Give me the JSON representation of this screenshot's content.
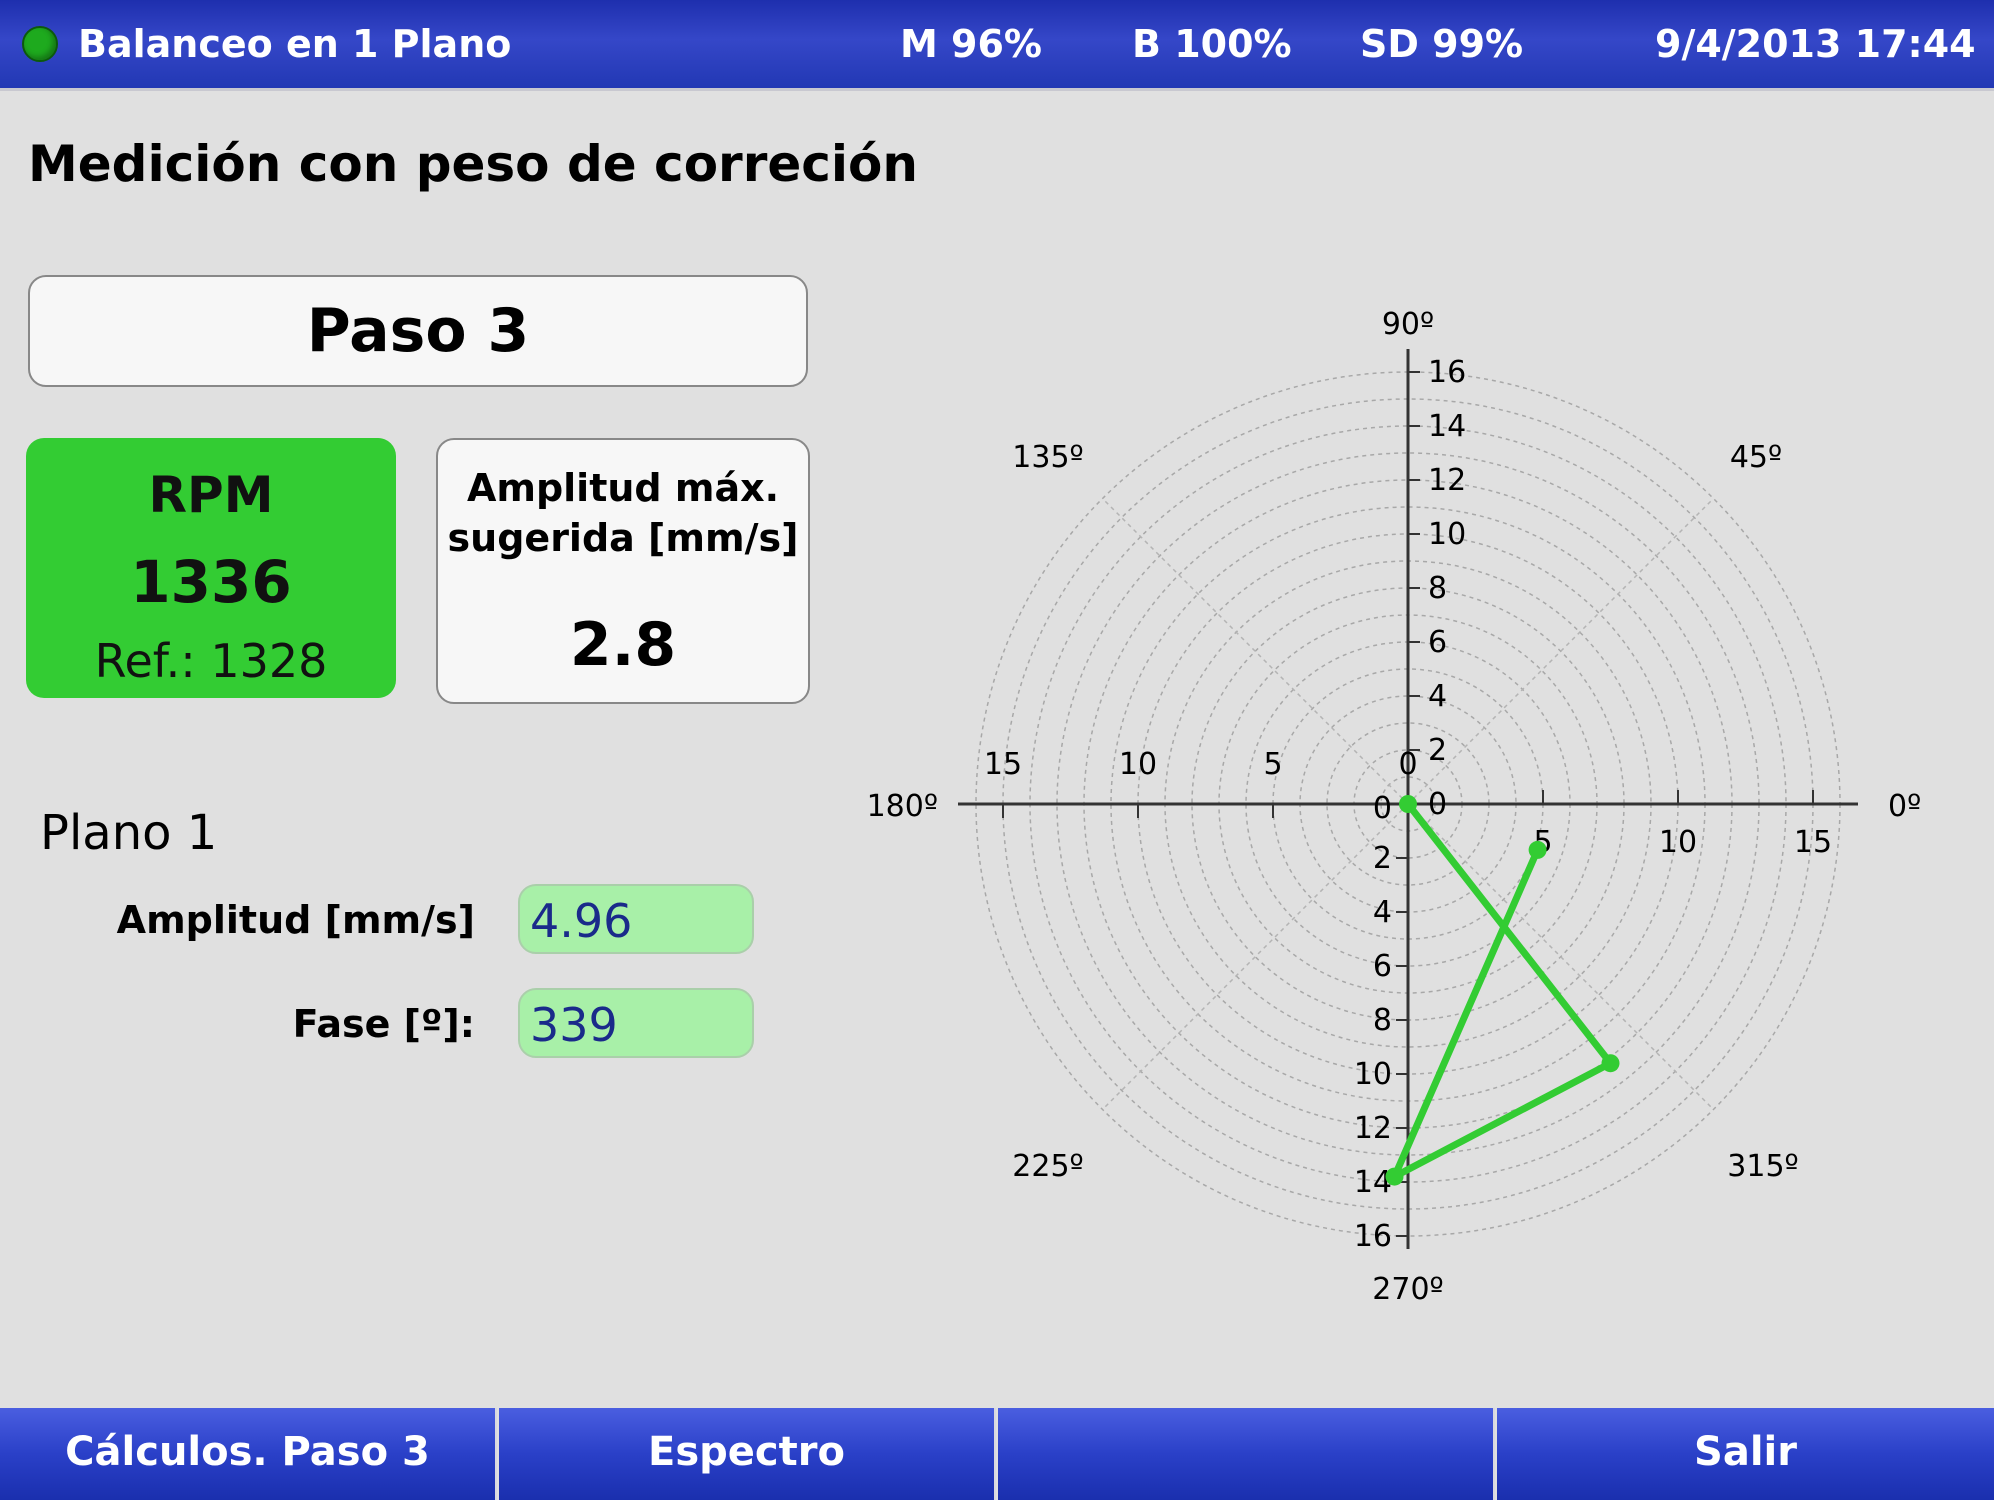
{
  "header": {
    "title": "Balanceo en 1 Plano",
    "m": "M 96%",
    "b": "B 100%",
    "sd": "SD 99%",
    "datetime": "9/4/2013 17:44",
    "status_color": "#1eaa1e"
  },
  "page_title": "Medición con peso de correción",
  "step": "Paso 3",
  "rpm": {
    "label": "RPM",
    "value": "1336",
    "ref": "Ref.: 1328",
    "color": "#33cc33"
  },
  "amplitude_max": {
    "line1": "Amplitud máx.",
    "line2": "sugerida [mm/s]",
    "value": "2.8"
  },
  "plane": {
    "title": "Plano 1",
    "amplitude_label": "Amplitud [mm/s]",
    "amplitude_value": "4.96",
    "phase_label": "Fase [º]:",
    "phase_value": "339"
  },
  "softkeys": [
    "Cálculos. Paso 3",
    "Espectro",
    "",
    "Salir"
  ],
  "chart_data": {
    "type": "polar",
    "radius_max": 16,
    "angle_labels": [
      "0º",
      "45º",
      "90º",
      "135º",
      "180º",
      "225º",
      "270º",
      "315º"
    ],
    "x_ticks": [
      "15",
      "10",
      "5",
      "0",
      "5",
      "10",
      "15"
    ],
    "y_ticks": [
      "16",
      "14",
      "12",
      "10",
      "8",
      "6",
      "4",
      "2",
      "0",
      "2",
      "4",
      "6",
      "8",
      "10",
      "12",
      "14",
      "16"
    ],
    "grid": true,
    "series": [
      {
        "color": "#33cc33",
        "points": [
          {
            "x": 0,
            "y": 0
          },
          {
            "x": 7.5,
            "y": -9.6
          },
          {
            "x": -0.5,
            "y": -13.8
          },
          {
            "x": 4.8,
            "y": -1.7
          }
        ]
      }
    ]
  }
}
